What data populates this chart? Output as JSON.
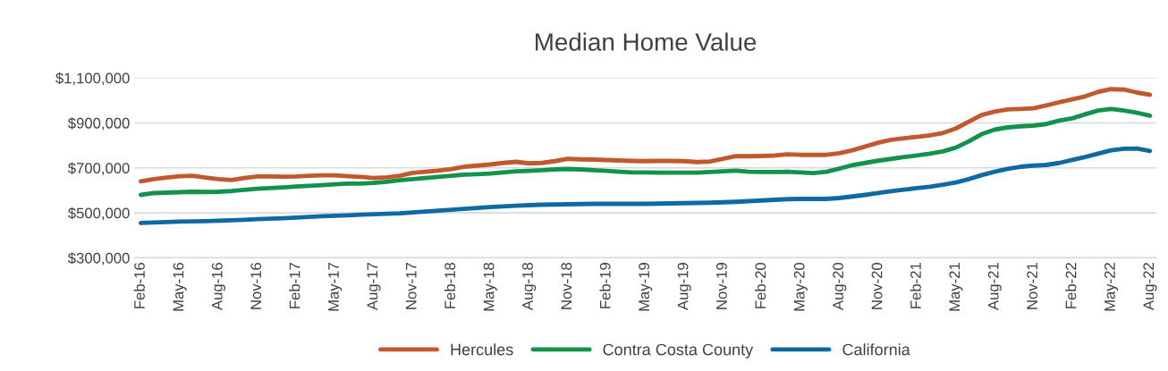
{
  "chart_data": {
    "type": "line",
    "title": "Median Home Value",
    "categories": [
      "Feb-16",
      null,
      null,
      "May-16",
      null,
      null,
      "Aug-16",
      null,
      null,
      "Nov-16",
      null,
      null,
      "Feb-17",
      null,
      null,
      "May-17",
      null,
      null,
      "Aug-17",
      null,
      null,
      "Nov-17",
      null,
      null,
      "Feb-18",
      null,
      null,
      "May-18",
      null,
      null,
      "Aug-18",
      null,
      null,
      "Nov-18",
      null,
      null,
      "Feb-19",
      null,
      null,
      "May-19",
      null,
      null,
      "Aug-19",
      null,
      null,
      "Nov-19",
      null,
      null,
      "Feb-20",
      null,
      null,
      "May-20",
      null,
      null,
      "Aug-20",
      null,
      null,
      "Nov-20",
      null,
      null,
      "Feb-21",
      null,
      null,
      "May-21",
      null,
      null,
      "Aug-21",
      null,
      null,
      "Nov-21",
      null,
      null,
      "Feb-22",
      null,
      null,
      "May-22",
      null,
      null,
      "Aug-22"
    ],
    "series": [
      {
        "name": "Hercules",
        "color": "#c0592b",
        "values": [
          640000,
          650000,
          657000,
          663000,
          665000,
          657000,
          650000,
          646000,
          655000,
          662000,
          662000,
          661000,
          662000,
          665000,
          667000,
          667000,
          663000,
          660000,
          655000,
          658000,
          665000,
          678000,
          683000,
          688000,
          695000,
          705000,
          710000,
          715000,
          722000,
          727000,
          720000,
          722000,
          730000,
          740000,
          738000,
          737000,
          735000,
          733000,
          731000,
          730000,
          731000,
          731000,
          730000,
          726000,
          728000,
          740000,
          752000,
          752000,
          753000,
          755000,
          760000,
          758000,
          758000,
          758000,
          765000,
          778000,
          795000,
          812000,
          825000,
          832000,
          838000,
          845000,
          855000,
          875000,
          905000,
          935000,
          950000,
          960000,
          962000,
          965000,
          978000,
          992000,
          1005000,
          1018000,
          1038000,
          1050000,
          1048000,
          1035000,
          1025000
        ]
      },
      {
        "name": "Contra Costa County",
        "color": "#12924a",
        "values": [
          580000,
          588000,
          590000,
          592000,
          594000,
          593000,
          594000,
          597000,
          602000,
          607000,
          610000,
          613000,
          617000,
          620000,
          623000,
          627000,
          630000,
          630000,
          633000,
          638000,
          645000,
          650000,
          655000,
          660000,
          665000,
          670000,
          672000,
          675000,
          680000,
          685000,
          687000,
          690000,
          693000,
          695000,
          693000,
          690000,
          687000,
          683000,
          680000,
          680000,
          679000,
          679000,
          679000,
          679000,
          682000,
          685000,
          688000,
          683000,
          682000,
          682000,
          683000,
          680000,
          677000,
          683000,
          697000,
          712000,
          722000,
          732000,
          740000,
          748000,
          755000,
          763000,
          773000,
          790000,
          818000,
          850000,
          870000,
          880000,
          885000,
          888000,
          895000,
          910000,
          920000,
          938000,
          955000,
          962000,
          955000,
          945000,
          932000
        ]
      },
      {
        "name": "California",
        "color": "#0f6aa3",
        "values": [
          455000,
          457000,
          459000,
          461000,
          462000,
          463000,
          465000,
          467000,
          469000,
          472000,
          474000,
          476000,
          479000,
          482000,
          485000,
          487000,
          489000,
          492000,
          494000,
          496000,
          498000,
          502000,
          506000,
          510000,
          514000,
          518000,
          522000,
          526000,
          529000,
          532000,
          534000,
          536000,
          537000,
          538000,
          539000,
          540000,
          540000,
          540000,
          540000,
          540000,
          541000,
          542000,
          543000,
          544000,
          545000,
          547000,
          549000,
          552000,
          555000,
          558000,
          561000,
          562000,
          562000,
          562000,
          566000,
          573000,
          580000,
          588000,
          596000,
          603000,
          610000,
          616000,
          625000,
          635000,
          650000,
          668000,
          683000,
          696000,
          705000,
          710000,
          713000,
          722000,
          735000,
          748000,
          763000,
          778000,
          785000,
          786000,
          775000
        ]
      }
    ],
    "ylim": [
      300000,
      1100000
    ],
    "yticks": [
      {
        "value": 300000,
        "label": "$300,000"
      },
      {
        "value": 500000,
        "label": "$500,000"
      },
      {
        "value": 700000,
        "label": "$700,000"
      },
      {
        "value": 900000,
        "label": "$900,000"
      },
      {
        "value": 1100000,
        "label": "$1,100,000"
      }
    ],
    "grid": "y",
    "legend": "bottom",
    "marker": "none",
    "line_style": "solid"
  }
}
